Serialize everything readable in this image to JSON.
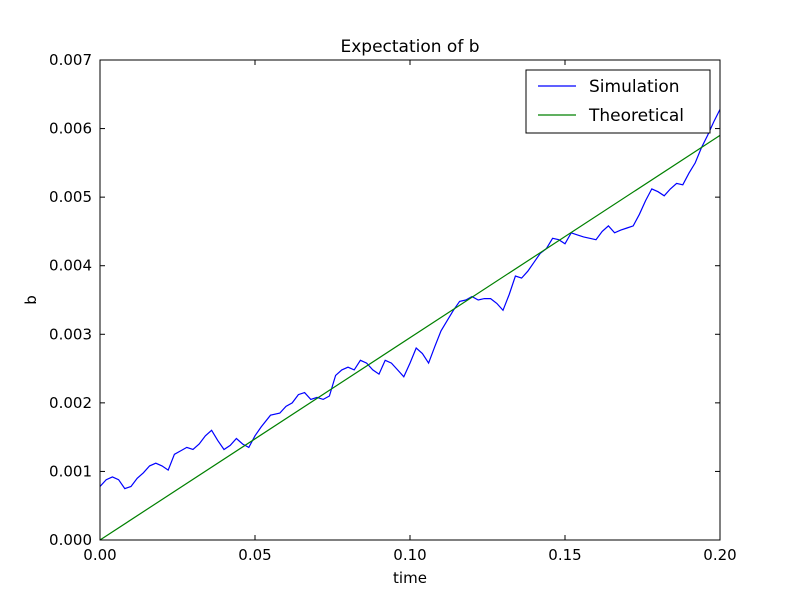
{
  "chart_data": {
    "type": "line",
    "title": "Expectation of b",
    "xlabel": "time",
    "ylabel": "b",
    "xlim": [
      0.0,
      0.2
    ],
    "ylim": [
      0.0,
      0.007
    ],
    "xticks": [
      0.0,
      0.05,
      0.1,
      0.15,
      0.2
    ],
    "xtick_labels": [
      "0.00",
      "0.05",
      "0.10",
      "0.15",
      "0.20"
    ],
    "yticks": [
      0.0,
      0.001,
      0.002,
      0.003,
      0.004,
      0.005,
      0.006,
      0.007
    ],
    "ytick_labels": [
      "0.000",
      "0.001",
      "0.002",
      "0.003",
      "0.004",
      "0.005",
      "0.006",
      "0.007"
    ],
    "grid": false,
    "legend_position": "top-right",
    "series": [
      {
        "name": "Simulation",
        "color": "#0000ff",
        "x": [
          0.0,
          0.002,
          0.004,
          0.006,
          0.008,
          0.01,
          0.012,
          0.014,
          0.016,
          0.018,
          0.02,
          0.022,
          0.024,
          0.026,
          0.028,
          0.03,
          0.032,
          0.034,
          0.036,
          0.038,
          0.04,
          0.042,
          0.044,
          0.046,
          0.048,
          0.05,
          0.052,
          0.055,
          0.058,
          0.06,
          0.062,
          0.064,
          0.066,
          0.068,
          0.07,
          0.072,
          0.074,
          0.076,
          0.078,
          0.08,
          0.082,
          0.084,
          0.086,
          0.088,
          0.09,
          0.092,
          0.094,
          0.096,
          0.098,
          0.1,
          0.102,
          0.104,
          0.106,
          0.108,
          0.11,
          0.112,
          0.114,
          0.116,
          0.118,
          0.12,
          0.122,
          0.124,
          0.126,
          0.128,
          0.13,
          0.132,
          0.134,
          0.136,
          0.138,
          0.14,
          0.142,
          0.144,
          0.146,
          0.148,
          0.15,
          0.152,
          0.154,
          0.156,
          0.158,
          0.16,
          0.162,
          0.164,
          0.166,
          0.168,
          0.17,
          0.172,
          0.174,
          0.176,
          0.178,
          0.18,
          0.182,
          0.184,
          0.186,
          0.188,
          0.19,
          0.192,
          0.194,
          0.196,
          0.198,
          0.2
        ],
        "values": [
          0.00078,
          0.00088,
          0.00092,
          0.00088,
          0.00075,
          0.00078,
          0.0009,
          0.00098,
          0.00108,
          0.00112,
          0.00108,
          0.00102,
          0.00125,
          0.0013,
          0.00135,
          0.00132,
          0.0014,
          0.00152,
          0.0016,
          0.00145,
          0.00132,
          0.00138,
          0.00148,
          0.0014,
          0.00135,
          0.00152,
          0.00165,
          0.00182,
          0.00185,
          0.00195,
          0.002,
          0.00212,
          0.00215,
          0.00205,
          0.00208,
          0.00205,
          0.0021,
          0.0024,
          0.00248,
          0.00252,
          0.00248,
          0.00262,
          0.00258,
          0.00248,
          0.00242,
          0.00262,
          0.00258,
          0.00248,
          0.00238,
          0.00258,
          0.0028,
          0.00272,
          0.00258,
          0.00282,
          0.00305,
          0.0032,
          0.00335,
          0.00348,
          0.0035,
          0.00355,
          0.0035,
          0.00352,
          0.00352,
          0.00345,
          0.00335,
          0.00358,
          0.00385,
          0.00382,
          0.00392,
          0.00405,
          0.00418,
          0.00425,
          0.0044,
          0.00438,
          0.00432,
          0.00448,
          0.00445,
          0.00442,
          0.0044,
          0.00438,
          0.0045,
          0.00458,
          0.00448,
          0.00452,
          0.00455,
          0.00458,
          0.00475,
          0.00495,
          0.00512,
          0.00508,
          0.00502,
          0.00512,
          0.0052,
          0.00518,
          0.00535,
          0.0055,
          0.00572,
          0.0059,
          0.0061,
          0.00628
        ]
      },
      {
        "name": "Theoretical",
        "color": "#008000",
        "x": [
          0.0,
          0.2
        ],
        "values": [
          0.0,
          0.0059
        ]
      }
    ]
  }
}
